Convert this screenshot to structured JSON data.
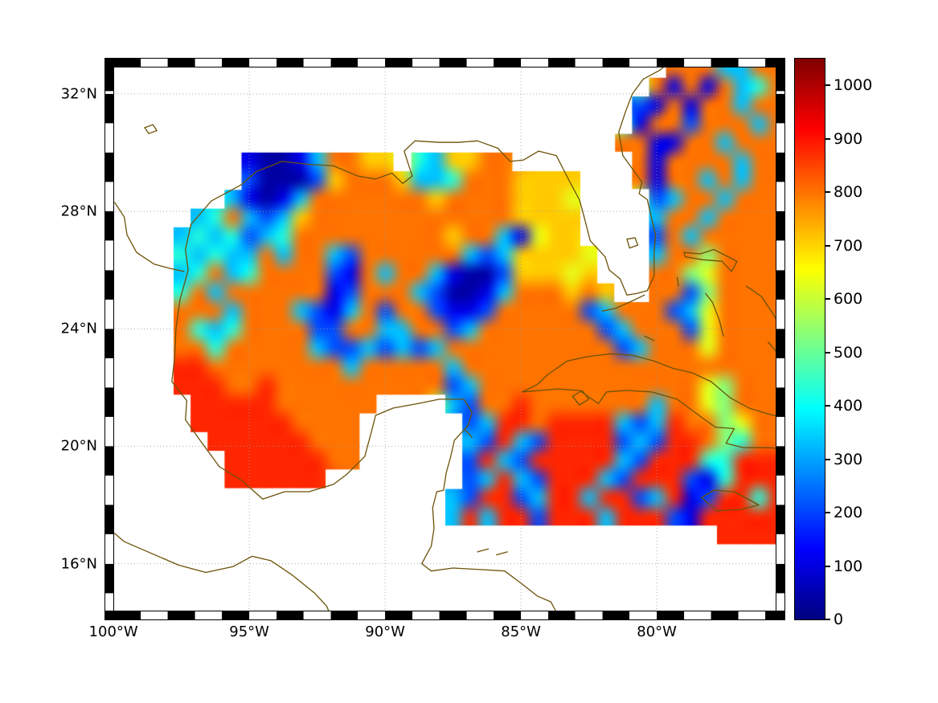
{
  "figure": {
    "background": "#ffffff",
    "coast_color": "#6b5208",
    "grid_color": "#9a9a9a",
    "frame_black": "#000000",
    "frame_white": "#ffffff"
  },
  "chart_data": {
    "type": "heatmap",
    "colormap": "jet",
    "title": "",
    "xlabel": "",
    "ylabel": "",
    "lon_range": [
      -100.3,
      -75.3
    ],
    "lat_range": [
      14.1,
      33.2
    ],
    "cols": 40,
    "rows": 30,
    "x_tick_labels": [
      "100°W",
      "95°W",
      "90°W",
      "85°W",
      "80°W"
    ],
    "x_tick_lons": [
      -100,
      -95,
      -90,
      -85,
      -80
    ],
    "y_tick_labels": [
      "32°N",
      "28°N",
      "24°N",
      "20°N",
      "16°N"
    ],
    "y_tick_lats": [
      32,
      28,
      24,
      20,
      16
    ],
    "colorbar_ticks": [
      0,
      100,
      200,
      300,
      400,
      500,
      600,
      700,
      800,
      900,
      1000
    ],
    "color_range": [
      0,
      1050
    ],
    "value_key": {
      ".": null,
      "0": 40,
      "1": 110,
      "2": 210,
      "3": 330,
      "4": 430,
      "5": 530,
      "6": 630,
      "7": 710,
      "8": 800,
      "9": 880
    },
    "grid_rows": [
      ".................................8883388",
      "................................81818348",
      "...............................218188388",
      "...............................188288838",
      "..............................8811883888",
      "........100138877.437788.......818888388",
      "........20002788873348887777...818838388",
      ".......310138888888788887776....23883888",
      ".....34832378888888888887777....38838888",
      "....343423488888888878831677....28388888",
      "....4343383883288888832377776...38858888",
      "....3483488882183883100277767...88568888",
      "....48388888812888320013888787..88258888",
      "....888388832138288211288888238882368888",
      "....843488882288338823888888823888268888",
      "....884888883223232388888888882388868888",
      "....998888888838888838888888888888888888",
      "....999889888888888823888888888888865888",
      ".....99999888888....32889888888838865888",
      ".....9999998888......2399899993239885688",
      "......999999888......3293299992329985488",
      ".......99999988......2932999993299944999",
      ".......999999........2393299932999214999",
      "....................32992399399239129949",
      "....................39399299939992199999",
      "....................................9999",
      "........................................",
      "........................................",
      "........................................",
      "........................................"
    ]
  },
  "coastlines": [
    {
      "name": "north-america",
      "points": [
        [
          -79.3,
          33.25
        ],
        [
          -79.9,
          32.8
        ],
        [
          -80.5,
          32.5
        ],
        [
          -80.9,
          32.0
        ],
        [
          -81.15,
          31.4
        ],
        [
          -81.4,
          30.7
        ],
        [
          -81.25,
          29.9
        ],
        [
          -80.55,
          29.0
        ],
        [
          -80.65,
          28.6
        ],
        [
          -80.35,
          28.4
        ],
        [
          -80.05,
          27.2
        ],
        [
          -80.1,
          26.6
        ],
        [
          -80.1,
          25.8
        ],
        [
          -80.35,
          25.3
        ],
        [
          -80.75,
          25.2
        ],
        [
          -81.1,
          25.15
        ],
        [
          -81.35,
          25.7
        ],
        [
          -81.75,
          26.0
        ],
        [
          -81.9,
          26.45
        ],
        [
          -82.45,
          27.0
        ],
        [
          -82.7,
          27.9
        ],
        [
          -82.85,
          28.4
        ],
        [
          -83.2,
          29.0
        ],
        [
          -83.7,
          29.9
        ],
        [
          -84.35,
          30.05
        ],
        [
          -84.9,
          29.75
        ],
        [
          -85.4,
          29.7
        ],
        [
          -85.85,
          30.15
        ],
        [
          -86.6,
          30.4
        ],
        [
          -87.3,
          30.35
        ],
        [
          -88.0,
          30.35
        ],
        [
          -88.9,
          30.4
        ],
        [
          -89.3,
          30.05
        ],
        [
          -89.0,
          29.2
        ],
        [
          -89.35,
          28.95
        ],
        [
          -89.75,
          29.3
        ],
        [
          -90.35,
          29.1
        ],
        [
          -91.0,
          29.2
        ],
        [
          -91.9,
          29.55
        ],
        [
          -92.8,
          29.6
        ],
        [
          -93.8,
          29.7
        ],
        [
          -94.75,
          29.35
        ],
        [
          -95.3,
          28.9
        ],
        [
          -96.4,
          28.35
        ],
        [
          -97.15,
          27.55
        ],
        [
          -97.35,
          26.7
        ],
        [
          -97.25,
          26.0
        ],
        [
          -97.55,
          25.0
        ],
        [
          -97.7,
          24.0
        ],
        [
          -97.75,
          23.0
        ],
        [
          -97.85,
          22.2
        ],
        [
          -97.3,
          21.55
        ],
        [
          -97.35,
          20.9
        ],
        [
          -96.85,
          20.25
        ],
        [
          -96.1,
          19.3
        ],
        [
          -95.3,
          18.85
        ],
        [
          -94.5,
          18.2
        ],
        [
          -93.7,
          18.45
        ],
        [
          -92.8,
          18.45
        ],
        [
          -91.9,
          18.7
        ],
        [
          -91.4,
          19.05
        ],
        [
          -90.75,
          19.65
        ],
        [
          -90.5,
          20.5
        ],
        [
          -90.35,
          21.05
        ],
        [
          -89.7,
          21.3
        ],
        [
          -88.8,
          21.45
        ],
        [
          -88.0,
          21.6
        ],
        [
          -87.1,
          21.6
        ],
        [
          -86.8,
          21.15
        ],
        [
          -86.95,
          20.7
        ],
        [
          -87.45,
          20.2
        ],
        [
          -87.6,
          19.6
        ],
        [
          -87.75,
          19.1
        ],
        [
          -87.85,
          18.5
        ],
        [
          -88.1,
          18.45
        ],
        [
          -88.25,
          17.9
        ],
        [
          -88.2,
          17.2
        ],
        [
          -88.3,
          16.6
        ],
        [
          -88.65,
          16.0
        ],
        [
          -88.3,
          15.75
        ],
        [
          -87.5,
          15.85
        ],
        [
          -86.5,
          15.8
        ],
        [
          -85.6,
          15.75
        ],
        [
          -84.95,
          15.3
        ],
        [
          -84.4,
          14.9
        ],
        [
          -83.9,
          14.7
        ],
        [
          -83.55,
          14.1
        ]
      ]
    },
    {
      "name": "mexico-pacific",
      "points": [
        [
          -100.3,
          17.3
        ],
        [
          -99.6,
          16.75
        ],
        [
          -98.6,
          16.35
        ],
        [
          -97.6,
          15.95
        ],
        [
          -96.6,
          15.7
        ],
        [
          -95.6,
          15.9
        ],
        [
          -94.9,
          16.25
        ],
        [
          -94.2,
          16.1
        ],
        [
          -93.4,
          15.6
        ],
        [
          -92.6,
          15.0
        ],
        [
          -92.15,
          14.55
        ],
        [
          -91.95,
          14.1
        ]
      ]
    },
    {
      "name": "cuba",
      "points": [
        [
          -84.95,
          21.85
        ],
        [
          -84.4,
          22.1
        ],
        [
          -84.0,
          22.45
        ],
        [
          -83.3,
          22.9
        ],
        [
          -82.55,
          23.05
        ],
        [
          -81.7,
          23.15
        ],
        [
          -80.9,
          23.1
        ],
        [
          -80.1,
          22.9
        ],
        [
          -79.4,
          22.65
        ],
        [
          -78.7,
          22.5
        ],
        [
          -78.0,
          22.2
        ],
        [
          -77.3,
          21.65
        ],
        [
          -76.6,
          21.3
        ],
        [
          -75.9,
          21.1
        ],
        [
          -75.25,
          20.95
        ],
        [
          -74.9,
          20.65
        ],
        [
          -74.7,
          20.3
        ],
        [
          -75.1,
          19.9
        ],
        [
          -75.9,
          19.95
        ],
        [
          -76.8,
          19.95
        ],
        [
          -77.45,
          20.1
        ],
        [
          -77.15,
          20.6
        ],
        [
          -77.85,
          20.65
        ],
        [
          -78.45,
          21.05
        ],
        [
          -79.25,
          21.6
        ],
        [
          -80.2,
          21.85
        ],
        [
          -81.1,
          21.9
        ],
        [
          -81.85,
          21.85
        ],
        [
          -82.15,
          21.45
        ],
        [
          -82.85,
          21.9
        ],
        [
          -83.65,
          21.95
        ],
        [
          -84.3,
          21.9
        ],
        [
          -84.95,
          21.85
        ]
      ]
    },
    {
      "name": "isle-of-youth",
      "points": [
        [
          -83.1,
          21.7
        ],
        [
          -82.75,
          21.9
        ],
        [
          -82.5,
          21.6
        ],
        [
          -82.85,
          21.4
        ],
        [
          -83.1,
          21.7
        ]
      ]
    },
    {
      "name": "jamaica",
      "points": [
        [
          -78.35,
          18.25
        ],
        [
          -77.9,
          18.5
        ],
        [
          -77.15,
          18.45
        ],
        [
          -76.25,
          18.0
        ],
        [
          -76.9,
          17.85
        ],
        [
          -77.8,
          17.8
        ],
        [
          -78.35,
          18.25
        ]
      ]
    },
    {
      "name": "grand-bahama-abaco",
      "points": [
        [
          -79.0,
          26.6
        ],
        [
          -78.4,
          26.55
        ],
        [
          -77.9,
          26.7
        ],
        [
          -77.05,
          26.3
        ],
        [
          -77.25,
          25.95
        ],
        [
          -77.6,
          26.3
        ],
        [
          -78.3,
          26.35
        ],
        [
          -78.95,
          26.45
        ],
        [
          -79.0,
          26.6
        ]
      ]
    },
    {
      "name": "andros",
      "points": [
        [
          -78.2,
          25.2
        ],
        [
          -77.95,
          24.9
        ],
        [
          -77.7,
          24.3
        ],
        [
          -77.55,
          23.75
        ]
      ]
    },
    {
      "name": "bimini",
      "points": [
        [
          -79.25,
          25.75
        ],
        [
          -79.2,
          25.45
        ]
      ]
    },
    {
      "name": "eleuthera-exuma",
      "points": [
        [
          -76.7,
          25.45
        ],
        [
          -76.15,
          25.1
        ],
        [
          -75.75,
          24.55
        ],
        [
          -75.4,
          24.0
        ],
        [
          -75.2,
          23.6
        ]
      ]
    },
    {
      "name": "long-island-bahamas",
      "points": [
        [
          -75.9,
          23.55
        ],
        [
          -75.3,
          22.9
        ]
      ]
    },
    {
      "name": "florida-keys",
      "points": [
        [
          -80.45,
          25.15
        ],
        [
          -80.9,
          24.95
        ],
        [
          -81.5,
          24.7
        ],
        [
          -82.0,
          24.6
        ]
      ]
    },
    {
      "name": "lake-okeechobee",
      "points": [
        [
          -81.1,
          27.05
        ],
        [
          -80.8,
          27.1
        ],
        [
          -80.7,
          26.85
        ],
        [
          -81.0,
          26.75
        ],
        [
          -81.1,
          27.05
        ]
      ]
    },
    {
      "name": "rio-grande",
      "points": [
        [
          -99.95,
          28.3
        ],
        [
          -99.6,
          27.8
        ],
        [
          -99.5,
          27.2
        ],
        [
          -99.15,
          26.6
        ],
        [
          -98.5,
          26.2
        ],
        [
          -97.9,
          26.05
        ],
        [
          -97.4,
          25.95
        ]
      ]
    },
    {
      "name": "texas-lakes",
      "points": [
        [
          -98.85,
          30.85
        ],
        [
          -98.55,
          30.95
        ],
        [
          -98.4,
          30.75
        ],
        [
          -98.7,
          30.65
        ],
        [
          -98.85,
          30.85
        ]
      ]
    },
    {
      "name": "bay-islands-1",
      "points": [
        [
          -86.6,
          16.4
        ],
        [
          -86.2,
          16.5
        ]
      ]
    },
    {
      "name": "bay-islands-2",
      "points": [
        [
          -85.9,
          16.3
        ],
        [
          -85.5,
          16.4
        ]
      ]
    },
    {
      "name": "cozumel",
      "points": [
        [
          -87.05,
          20.55
        ],
        [
          -86.8,
          20.3
        ]
      ]
    },
    {
      "name": "cay-sal",
      "points": [
        [
          -80.45,
          23.75
        ],
        [
          -80.1,
          23.6
        ]
      ]
    }
  ]
}
